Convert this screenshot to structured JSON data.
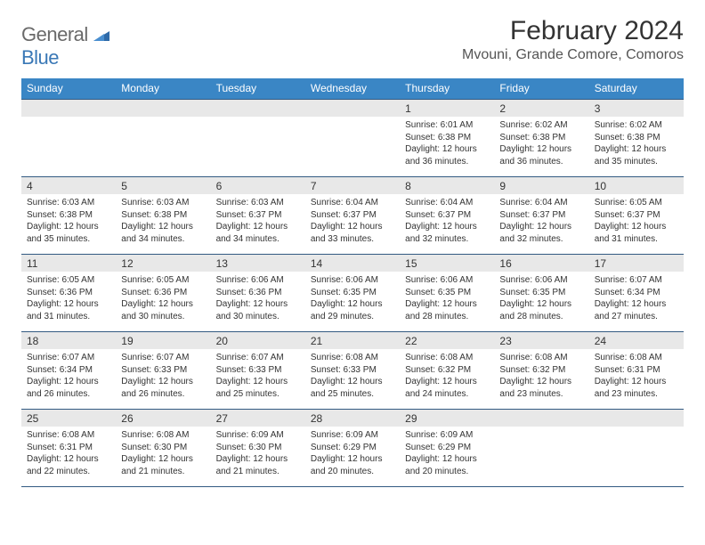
{
  "logo": {
    "text1": "General",
    "text2": "Blue"
  },
  "title": "February 2024",
  "location": "Mvouni, Grande Comore, Comoros",
  "colors": {
    "header_bg": "#3a86c5",
    "header_text": "#ffffff",
    "date_bg": "#e8e8e8",
    "border": "#335a82",
    "text": "#333333",
    "logo_gray": "#6a6a6a",
    "logo_blue": "#3a78b6"
  },
  "day_names": [
    "Sunday",
    "Monday",
    "Tuesday",
    "Wednesday",
    "Thursday",
    "Friday",
    "Saturday"
  ],
  "weeks": [
    [
      {
        "n": "",
        "d": ""
      },
      {
        "n": "",
        "d": ""
      },
      {
        "n": "",
        "d": ""
      },
      {
        "n": "",
        "d": ""
      },
      {
        "n": "1",
        "d": "Sunrise: 6:01 AM\nSunset: 6:38 PM\nDaylight: 12 hours and 36 minutes."
      },
      {
        "n": "2",
        "d": "Sunrise: 6:02 AM\nSunset: 6:38 PM\nDaylight: 12 hours and 36 minutes."
      },
      {
        "n": "3",
        "d": "Sunrise: 6:02 AM\nSunset: 6:38 PM\nDaylight: 12 hours and 35 minutes."
      }
    ],
    [
      {
        "n": "4",
        "d": "Sunrise: 6:03 AM\nSunset: 6:38 PM\nDaylight: 12 hours and 35 minutes."
      },
      {
        "n": "5",
        "d": "Sunrise: 6:03 AM\nSunset: 6:38 PM\nDaylight: 12 hours and 34 minutes."
      },
      {
        "n": "6",
        "d": "Sunrise: 6:03 AM\nSunset: 6:37 PM\nDaylight: 12 hours and 34 minutes."
      },
      {
        "n": "7",
        "d": "Sunrise: 6:04 AM\nSunset: 6:37 PM\nDaylight: 12 hours and 33 minutes."
      },
      {
        "n": "8",
        "d": "Sunrise: 6:04 AM\nSunset: 6:37 PM\nDaylight: 12 hours and 32 minutes."
      },
      {
        "n": "9",
        "d": "Sunrise: 6:04 AM\nSunset: 6:37 PM\nDaylight: 12 hours and 32 minutes."
      },
      {
        "n": "10",
        "d": "Sunrise: 6:05 AM\nSunset: 6:37 PM\nDaylight: 12 hours and 31 minutes."
      }
    ],
    [
      {
        "n": "11",
        "d": "Sunrise: 6:05 AM\nSunset: 6:36 PM\nDaylight: 12 hours and 31 minutes."
      },
      {
        "n": "12",
        "d": "Sunrise: 6:05 AM\nSunset: 6:36 PM\nDaylight: 12 hours and 30 minutes."
      },
      {
        "n": "13",
        "d": "Sunrise: 6:06 AM\nSunset: 6:36 PM\nDaylight: 12 hours and 30 minutes."
      },
      {
        "n": "14",
        "d": "Sunrise: 6:06 AM\nSunset: 6:35 PM\nDaylight: 12 hours and 29 minutes."
      },
      {
        "n": "15",
        "d": "Sunrise: 6:06 AM\nSunset: 6:35 PM\nDaylight: 12 hours and 28 minutes."
      },
      {
        "n": "16",
        "d": "Sunrise: 6:06 AM\nSunset: 6:35 PM\nDaylight: 12 hours and 28 minutes."
      },
      {
        "n": "17",
        "d": "Sunrise: 6:07 AM\nSunset: 6:34 PM\nDaylight: 12 hours and 27 minutes."
      }
    ],
    [
      {
        "n": "18",
        "d": "Sunrise: 6:07 AM\nSunset: 6:34 PM\nDaylight: 12 hours and 26 minutes."
      },
      {
        "n": "19",
        "d": "Sunrise: 6:07 AM\nSunset: 6:33 PM\nDaylight: 12 hours and 26 minutes."
      },
      {
        "n": "20",
        "d": "Sunrise: 6:07 AM\nSunset: 6:33 PM\nDaylight: 12 hours and 25 minutes."
      },
      {
        "n": "21",
        "d": "Sunrise: 6:08 AM\nSunset: 6:33 PM\nDaylight: 12 hours and 25 minutes."
      },
      {
        "n": "22",
        "d": "Sunrise: 6:08 AM\nSunset: 6:32 PM\nDaylight: 12 hours and 24 minutes."
      },
      {
        "n": "23",
        "d": "Sunrise: 6:08 AM\nSunset: 6:32 PM\nDaylight: 12 hours and 23 minutes."
      },
      {
        "n": "24",
        "d": "Sunrise: 6:08 AM\nSunset: 6:31 PM\nDaylight: 12 hours and 23 minutes."
      }
    ],
    [
      {
        "n": "25",
        "d": "Sunrise: 6:08 AM\nSunset: 6:31 PM\nDaylight: 12 hours and 22 minutes."
      },
      {
        "n": "26",
        "d": "Sunrise: 6:08 AM\nSunset: 6:30 PM\nDaylight: 12 hours and 21 minutes."
      },
      {
        "n": "27",
        "d": "Sunrise: 6:09 AM\nSunset: 6:30 PM\nDaylight: 12 hours and 21 minutes."
      },
      {
        "n": "28",
        "d": "Sunrise: 6:09 AM\nSunset: 6:29 PM\nDaylight: 12 hours and 20 minutes."
      },
      {
        "n": "29",
        "d": "Sunrise: 6:09 AM\nSunset: 6:29 PM\nDaylight: 12 hours and 20 minutes."
      },
      {
        "n": "",
        "d": ""
      },
      {
        "n": "",
        "d": ""
      }
    ]
  ]
}
